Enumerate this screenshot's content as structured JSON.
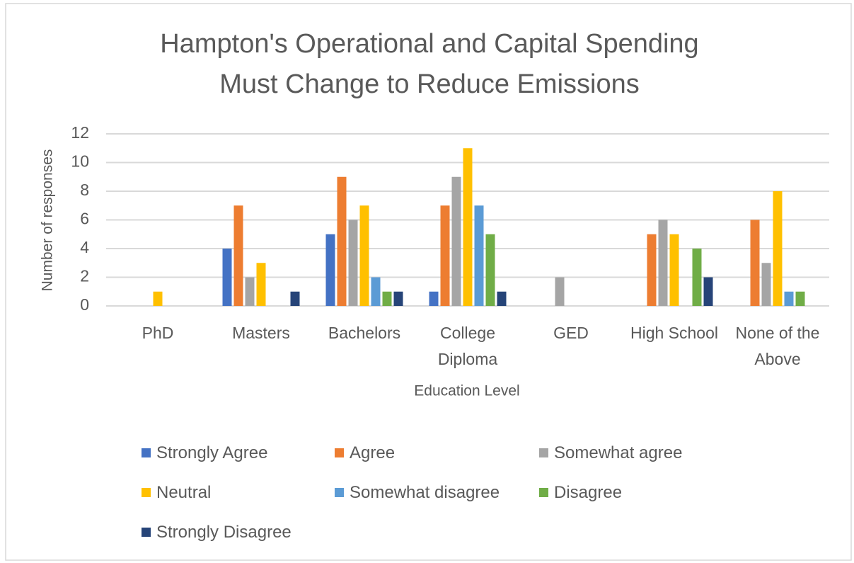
{
  "chart_data": {
    "type": "bar",
    "title": "Hampton's Operational and Capital Spending Must Change to Reduce Emissions",
    "x_label": "Education Level",
    "y_label": "Number of responses",
    "categories": [
      "PhD",
      "Masters",
      "Bachelors",
      "College Diploma",
      "GED",
      "High School",
      "None of the Above"
    ],
    "series": [
      {
        "name": "Strongly Agree",
        "color": "#4472c4",
        "values": [
          0,
          4,
          5,
          1,
          0,
          0,
          0
        ]
      },
      {
        "name": "Agree",
        "color": "#ed7d31",
        "values": [
          0,
          7,
          9,
          7,
          0,
          5,
          6
        ]
      },
      {
        "name": "Somewhat agree",
        "color": "#a5a5a5",
        "values": [
          0,
          2,
          6,
          9,
          2,
          6,
          3
        ]
      },
      {
        "name": "Neutral",
        "color": "#ffc000",
        "values": [
          1,
          3,
          7,
          11,
          0,
          5,
          8
        ]
      },
      {
        "name": "Somewhat disagree",
        "color": "#5b9bd5",
        "values": [
          0,
          0,
          2,
          7,
          0,
          0,
          1
        ]
      },
      {
        "name": "Disagree",
        "color": "#70ad47",
        "values": [
          0,
          0,
          1,
          5,
          0,
          4,
          1
        ]
      },
      {
        "name": "Strongly Disagree",
        "color": "#264478",
        "values": [
          0,
          1,
          1,
          1,
          0,
          2,
          0
        ]
      }
    ],
    "ylim": [
      0,
      12
    ],
    "yticks": [
      0,
      2,
      4,
      6,
      8,
      10,
      12
    ],
    "grid": true,
    "legend": "bottom"
  }
}
